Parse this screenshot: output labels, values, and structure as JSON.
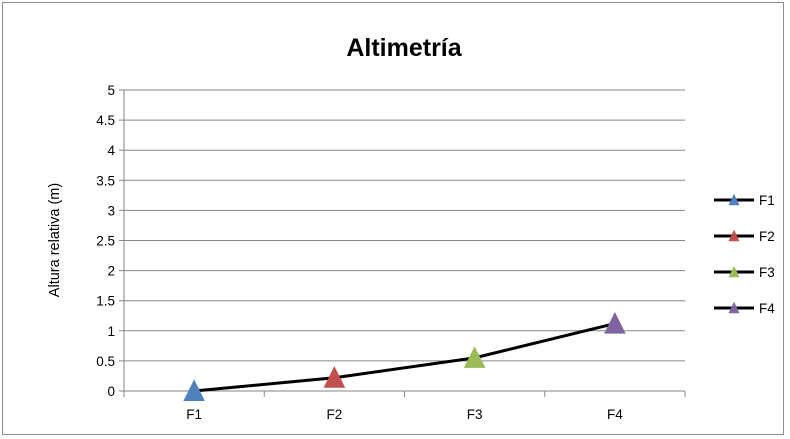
{
  "chart_data": {
    "type": "line",
    "title": "Altimetría",
    "xlabel": "",
    "ylabel": "Altura relativa  (m)",
    "categories": [
      "F1",
      "F2",
      "F3",
      "F4"
    ],
    "y_ticks": [
      "0",
      "0.5",
      "1",
      "1.5",
      "2",
      "2.5",
      "3",
      "3.5",
      "4",
      "4.5",
      "5"
    ],
    "ylim": [
      0,
      5
    ],
    "grid": "horizontal major",
    "legend_position": "right",
    "line_color": "#000000",
    "series": [
      {
        "name": "F1",
        "x": "F1",
        "y": 0,
        "color": "#4f81bd"
      },
      {
        "name": "F2",
        "x": "F2",
        "y": 0.22,
        "color": "#c0504d"
      },
      {
        "name": "F3",
        "x": "F3",
        "y": 0.55,
        "color": "#9bbb59"
      },
      {
        "name": "F4",
        "x": "F4",
        "y": 1.12,
        "color": "#8064a2"
      }
    ]
  }
}
